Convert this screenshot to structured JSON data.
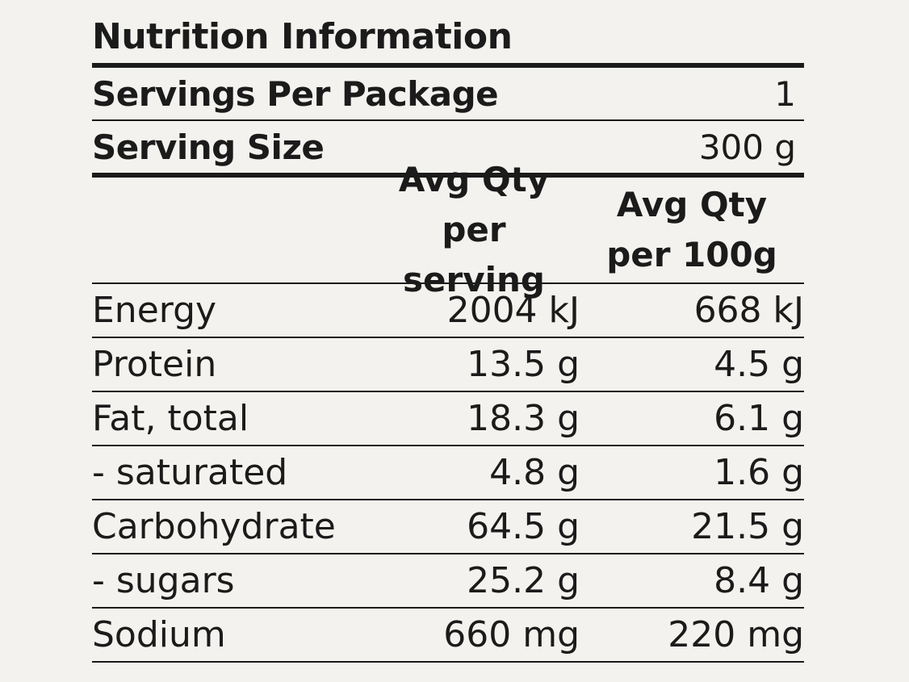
{
  "title": "Nutrition Information",
  "servings": {
    "label": "Servings Per Package",
    "value": "1"
  },
  "serving_size": {
    "label": "Serving Size",
    "value": "300 g"
  },
  "columns": {
    "per_serving": {
      "line1": "Avg Qty",
      "line2": "per serving"
    },
    "per_100g": {
      "line1": "Avg Qty",
      "line2": "per 100g"
    }
  },
  "rows": [
    {
      "nutrient": "Energy",
      "per_serving": "2004 kJ",
      "per_100g": "668 kJ"
    },
    {
      "nutrient": "Protein",
      "per_serving": "13.5 g",
      "per_100g": "4.5 g"
    },
    {
      "nutrient": "Fat, total",
      "per_serving": "18.3 g",
      "per_100g": "6.1 g"
    },
    {
      "nutrient": "- saturated",
      "per_serving": "4.8 g",
      "per_100g": "1.6 g"
    },
    {
      "nutrient": "Carbohydrate",
      "per_serving": "64.5 g",
      "per_100g": "21.5 g"
    },
    {
      "nutrient": "- sugars",
      "per_serving": "25.2 g",
      "per_100g": "8.4 g"
    },
    {
      "nutrient": "Sodium",
      "per_serving": "660 mg",
      "per_100g": "220 mg"
    }
  ]
}
